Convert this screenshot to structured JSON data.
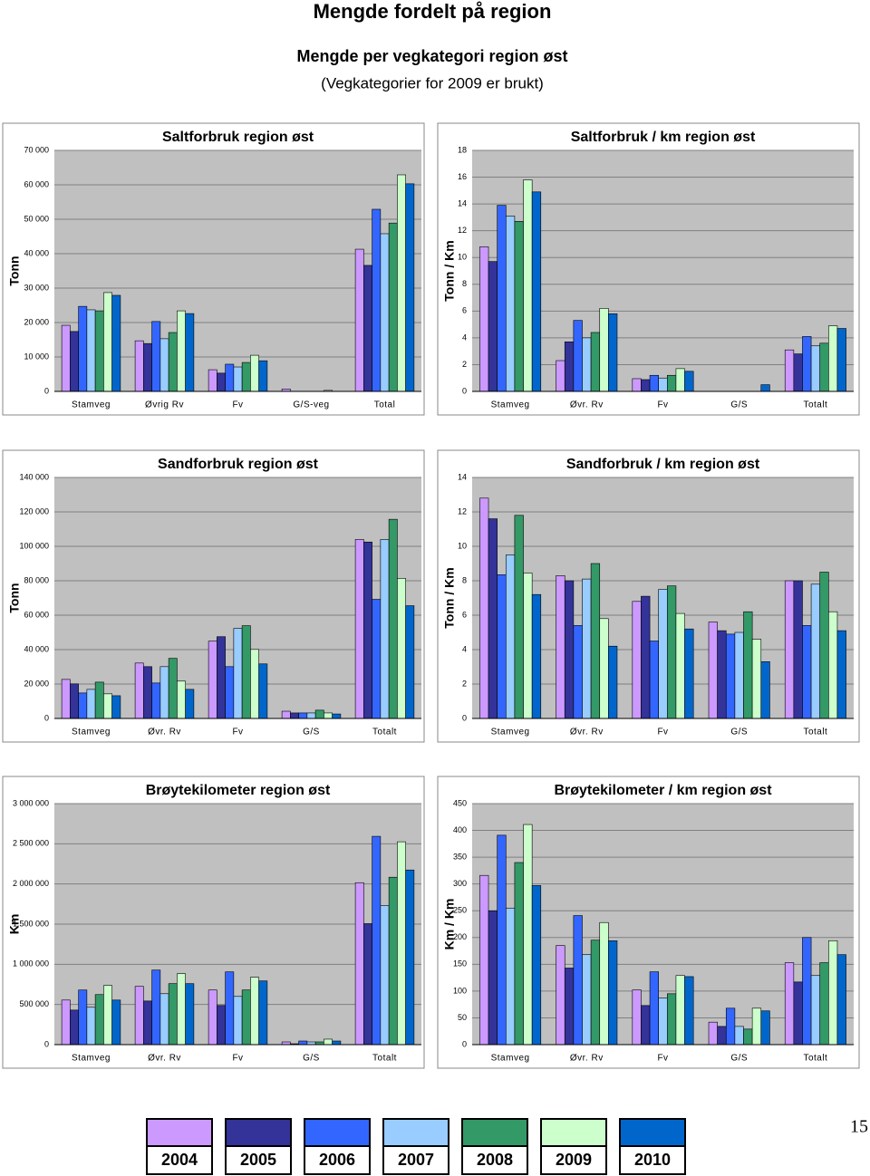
{
  "header": {
    "title": "Mengde fordelt på region",
    "subtitle": "Mengde per vegkategori region øst",
    "note": "(Vegkategorier for 2009 er brukt)"
  },
  "legend": [
    {
      "name": "2004",
      "color": "#cc99ff"
    },
    {
      "name": "2005",
      "color": "#333399"
    },
    {
      "name": "2006",
      "color": "#3366ff"
    },
    {
      "name": "2007",
      "color": "#99ccff"
    },
    {
      "name": "2008",
      "color": "#339966"
    },
    {
      "name": "2009",
      "color": "#ccffcc"
    },
    {
      "name": "2010",
      "color": "#0066cc"
    }
  ],
  "page_number": 15,
  "chart_data": [
    {
      "type": "bar",
      "title": "Saltforbruk region øst",
      "y_label": "Tonn",
      "categories": [
        "Stamveg",
        "Øvrig Rv",
        "Fv",
        "G/S-veg",
        "Total"
      ],
      "series": [
        {
          "values": [
            19200,
            14700,
            6300,
            700,
            41300
          ]
        },
        {
          "values": [
            17400,
            13900,
            5300,
            0,
            36600
          ]
        },
        {
          "values": [
            24700,
            20300,
            7900,
            0,
            52900
          ]
        },
        {
          "values": [
            23700,
            15300,
            7100,
            0,
            45800
          ]
        },
        {
          "values": [
            23400,
            17100,
            8400,
            0,
            48900
          ]
        },
        {
          "values": [
            28700,
            23400,
            10500,
            300,
            62900
          ]
        },
        {
          "values": [
            27900,
            22600,
            8900,
            0,
            60300
          ]
        }
      ],
      "ylim": [
        0,
        70000
      ],
      "yticks": [
        0,
        {
          "value": 10000,
          "label": "10 000"
        },
        {
          "value": 20000,
          "label": "20 000"
        },
        {
          "value": 30000,
          "label": "30 000"
        },
        {
          "value": 40000,
          "label": "40 000"
        },
        {
          "value": 50000,
          "label": "50 000"
        },
        {
          "value": 60000,
          "label": "60 000"
        },
        {
          "value": 70000,
          "label": "70 000"
        }
      ],
      "grid": true
    },
    {
      "type": "bar",
      "title": "Saltforbruk / km region øst",
      "y_label": "Tonn / Km",
      "categories": [
        "Stamveg",
        "Øvr. Rv",
        "Fv",
        "G/S",
        "Totalt"
      ],
      "series": [
        {
          "values": [
            10.8,
            2.3,
            0.95,
            0,
            3.1
          ]
        },
        {
          "values": [
            9.7,
            3.7,
            0.88,
            0,
            2.8
          ]
        },
        {
          "values": [
            13.9,
            5.3,
            1.2,
            0,
            4.1
          ]
        },
        {
          "values": [
            13.1,
            4.0,
            1.0,
            0,
            3.4
          ]
        },
        {
          "values": [
            12.7,
            4.4,
            1.2,
            0,
            3.6
          ]
        },
        {
          "values": [
            15.8,
            6.2,
            1.7,
            0,
            4.9
          ]
        },
        {
          "values": [
            14.9,
            5.8,
            1.5,
            0.5,
            4.7
          ]
        }
      ],
      "ylim": [
        0,
        18
      ],
      "yticks": [
        0,
        2,
        4,
        6,
        8,
        10,
        12,
        14,
        16,
        18
      ],
      "grid": true
    },
    {
      "type": "bar",
      "title": "Sandforbruk region øst",
      "y_label": "Tonn",
      "categories": [
        "Stamveg",
        "Øvr. Rv",
        "Fv",
        "G/S",
        "Totalt"
      ],
      "series": [
        {
          "values": [
            22700,
            32200,
            44900,
            4200,
            104000
          ]
        },
        {
          "values": [
            20100,
            30100,
            47500,
            3200,
            102500
          ]
        },
        {
          "values": [
            14800,
            20600,
            30100,
            3200,
            69200
          ]
        },
        {
          "values": [
            16900,
            30100,
            52300,
            3200,
            104000
          ]
        },
        {
          "values": [
            21100,
            34900,
            53900,
            4800,
            115700
          ]
        },
        {
          "values": [
            14300,
            21700,
            40100,
            3200,
            81400
          ]
        },
        {
          "values": [
            13200,
            16900,
            31700,
            2600,
            65500
          ]
        }
      ],
      "ylim": [
        0,
        140000
      ],
      "yticks": [
        0,
        {
          "value": 20000,
          "label": "20 000"
        },
        {
          "value": 40000,
          "label": "40 000"
        },
        {
          "value": 60000,
          "label": "60 000"
        },
        {
          "value": 80000,
          "label": "80 000"
        },
        {
          "value": 100000,
          "label": "100 000"
        },
        {
          "value": 120000,
          "label": "120 000"
        },
        {
          "value": 140000,
          "label": "140 000"
        }
      ],
      "grid": true
    },
    {
      "type": "bar",
      "title": "Sandforbruk / km region øst",
      "y_label": "Tonn / Km",
      "categories": [
        "Stamveg",
        "Øvr. Rv",
        "Fv",
        "G/S",
        "Totalt"
      ],
      "series": [
        {
          "values": [
            12.8,
            8.3,
            6.8,
            5.6,
            8.0
          ]
        },
        {
          "values": [
            11.6,
            8.0,
            7.1,
            5.1,
            8.0
          ]
        },
        {
          "values": [
            8.35,
            5.4,
            4.5,
            4.9,
            5.4
          ]
        },
        {
          "values": [
            9.5,
            8.1,
            7.5,
            5.0,
            7.8
          ]
        },
        {
          "values": [
            11.8,
            9.0,
            7.7,
            6.2,
            8.5
          ]
        },
        {
          "values": [
            8.45,
            5.8,
            6.1,
            4.6,
            6.2
          ]
        },
        {
          "values": [
            7.2,
            4.2,
            5.2,
            3.3,
            5.1
          ]
        }
      ],
      "ylim": [
        0,
        14
      ],
      "yticks": [
        0,
        2,
        4,
        6,
        8,
        10,
        12,
        14
      ],
      "grid": true
    },
    {
      "type": "bar",
      "title": "Brøytekilometer region øst",
      "y_label": "Km",
      "categories": [
        "Stamveg",
        "Øvr. Rv",
        "Fv",
        "G/S",
        "Totalt"
      ],
      "series": [
        {
          "values": [
            555000,
            725000,
            680000,
            34000,
            2016000
          ]
        },
        {
          "values": [
            430000,
            543000,
            487000,
            11000,
            1506000
          ]
        },
        {
          "values": [
            680000,
            928000,
            906000,
            45000,
            2593000
          ]
        },
        {
          "values": [
            465000,
            634000,
            600000,
            34000,
            1733000
          ]
        },
        {
          "values": [
            623000,
            759000,
            680000,
            34000,
            2084000
          ]
        },
        {
          "values": [
            736000,
            883000,
            838000,
            68000,
            2525000
          ]
        },
        {
          "values": [
            555000,
            759000,
            793000,
            45000,
            2174000
          ]
        }
      ],
      "ylim": [
        0,
        3000000
      ],
      "yticks": [
        0,
        {
          "value": 500000,
          "label": "500 000"
        },
        {
          "value": 1000000,
          "label": "1 000 000"
        },
        {
          "value": 1500000,
          "label": "1 500 000"
        },
        {
          "value": 2000000,
          "label": "2 000 000"
        },
        {
          "value": 2500000,
          "label": "2 500 000"
        },
        {
          "value": 3000000,
          "label": "3 000 000"
        }
      ],
      "grid": true
    },
    {
      "type": "bar",
      "title": "Brøytekilometer / km region øst",
      "y_label": "Km / Km",
      "categories": [
        "Stamveg",
        "Øvr. Rv",
        "Fv",
        "G/S",
        "Totalt"
      ],
      "series": [
        {
          "values": [
            316,
            185,
            102,
            42,
            153
          ]
        },
        {
          "values": [
            250,
            143,
            73,
            34,
            117
          ]
        },
        {
          "values": [
            391,
            241,
            136,
            68,
            200
          ]
        },
        {
          "values": [
            255,
            168,
            87,
            34,
            129
          ]
        },
        {
          "values": [
            340,
            195,
            95,
            29,
            153
          ]
        },
        {
          "values": [
            411,
            228,
            129,
            68,
            194
          ]
        },
        {
          "values": [
            297,
            194,
            127,
            63,
            168
          ]
        }
      ],
      "ylim": [
        0,
        450
      ],
      "yticks": [
        0,
        50,
        100,
        150,
        200,
        250,
        300,
        350,
        400,
        450
      ],
      "grid": true
    }
  ]
}
